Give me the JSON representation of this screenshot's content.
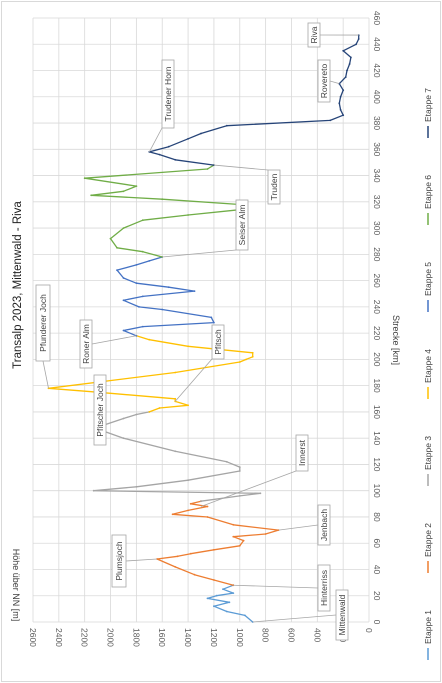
{
  "chart_data": {
    "type": "line",
    "title": "Transalp 2023, Mittenwald - Riva",
    "xlabel": "Strecke [km]",
    "ylabel": "Höhe über NN [m]",
    "xlim": [
      0,
      460
    ],
    "ylim": [
      0,
      2600
    ],
    "xticks": [
      "0",
      "20",
      "40",
      "60",
      "80",
      "100",
      "120",
      "140",
      "160",
      "180",
      "200",
      "220",
      "240",
      "260",
      "280",
      "300",
      "320",
      "340",
      "360",
      "380",
      "400",
      "420",
      "440",
      "460"
    ],
    "yticks": [
      "0",
      "200",
      "400",
      "600",
      "800",
      "1000",
      "1200",
      "1400",
      "1600",
      "1800",
      "2000",
      "2200",
      "2400",
      "2600"
    ],
    "grid": true,
    "legend_position": "right",
    "rotation": "rotated 90° counter-clockwise",
    "series": [
      {
        "name": "Etappe 1",
        "color": "#5B9BD5",
        "x": [
          0,
          5,
          8,
          12,
          15,
          18,
          20,
          22,
          25,
          28
        ],
        "y": [
          900,
          960,
          1100,
          1200,
          1080,
          1250,
          1180,
          1050,
          1130,
          1050
        ]
      },
      {
        "name": "Etappe 2",
        "color": "#ED7D31",
        "x": [
          28,
          32,
          36,
          42,
          48,
          50,
          52,
          55,
          58,
          62,
          65,
          67,
          70,
          74,
          80,
          82,
          85,
          88,
          90,
          92
        ],
        "y": [
          1050,
          1200,
          1350,
          1500,
          1640,
          1480,
          1380,
          1200,
          1000,
          970,
          1050,
          800,
          700,
          1050,
          1250,
          1520,
          1400,
          1250,
          1380,
          1300
        ]
      },
      {
        "name": "Etappe 3",
        "color": "#A5A5A5",
        "x": [
          92,
          96,
          98,
          100,
          103,
          108,
          115,
          118,
          122,
          130,
          140,
          147,
          150,
          155,
          158,
          160
        ],
        "y": [
          1300,
          1000,
          840,
          2130,
          1800,
          1400,
          1000,
          1000,
          1100,
          1500,
          1900,
          2100,
          2050,
          1900,
          1800,
          1700
        ]
      },
      {
        "name": "Etappe 4",
        "color": "#FFC000",
        "x": [
          160,
          163,
          165,
          168,
          170,
          175,
          178,
          190,
          198,
          200,
          202,
          205,
          210,
          215,
          218
        ],
        "y": [
          1700,
          1620,
          1400,
          1500,
          1500,
          2100,
          2480,
          1500,
          1000,
          950,
          900,
          900,
          1400,
          1700,
          1800
        ]
      },
      {
        "name": "Etappe 5",
        "color": "#4472C4",
        "x": [
          218,
          222,
          225,
          228,
          232,
          238,
          240,
          245,
          248,
          252,
          255,
          258,
          262,
          268,
          272,
          275,
          278
        ],
        "y": [
          1800,
          1900,
          1750,
          1200,
          1220,
          1600,
          1780,
          1900,
          1750,
          1350,
          1550,
          1800,
          1900,
          1950,
          1800,
          1700,
          1600
        ]
      },
      {
        "name": "Etappe 6",
        "color": "#70AD47",
        "x": [
          278,
          282,
          285,
          292,
          300,
          306,
          310,
          314,
          318,
          322,
          325,
          328,
          332,
          338,
          345,
          348
        ],
        "y": [
          1600,
          1750,
          1950,
          2000,
          1900,
          1750,
          1400,
          1000,
          1000,
          1600,
          2150,
          1900,
          1800,
          2200,
          1250,
          1200
        ]
      },
      {
        "name": "Etappe 7",
        "color": "#264478",
        "x": [
          348,
          352,
          356,
          358,
          362,
          368,
          372,
          378,
          382,
          386,
          390,
          395,
          400,
          405,
          410,
          415,
          420,
          425,
          430,
          435,
          440,
          444,
          447
        ],
        "y": [
          1200,
          1500,
          1620,
          1700,
          1550,
          1400,
          1300,
          1100,
          300,
          200,
          220,
          230,
          220,
          200,
          230,
          180,
          170,
          150,
          140,
          200,
          100,
          80,
          80
        ]
      }
    ],
    "annotations": [
      {
        "text": "Mittenwald",
        "x": 0,
        "y": 900
      },
      {
        "text": "Hinterriss",
        "x": 28,
        "y": 1050
      },
      {
        "text": "Plumsjoch",
        "x": 48,
        "y": 1640
      },
      {
        "text": "Jenbach",
        "x": 70,
        "y": 700
      },
      {
        "text": "Innerst",
        "x": 88,
        "y": 1300
      },
      {
        "text": "Pfitscher Joch",
        "x": 147,
        "y": 2100
      },
      {
        "text": "Pfitsch",
        "x": 168,
        "y": 1500
      },
      {
        "text": "Pfunderer Joch",
        "x": 178,
        "y": 2480
      },
      {
        "text": "Roner Alm",
        "x": 218,
        "y": 1800
      },
      {
        "text": "Seiser Alm",
        "x": 278,
        "y": 1600
      },
      {
        "text": "Truden",
        "x": 348,
        "y": 1200
      },
      {
        "text": "Trudener Horn",
        "x": 358,
        "y": 1700
      },
      {
        "text": "Rovereto",
        "x": 410,
        "y": 230
      },
      {
        "text": "Riva",
        "x": 447,
        "y": 80
      }
    ]
  }
}
